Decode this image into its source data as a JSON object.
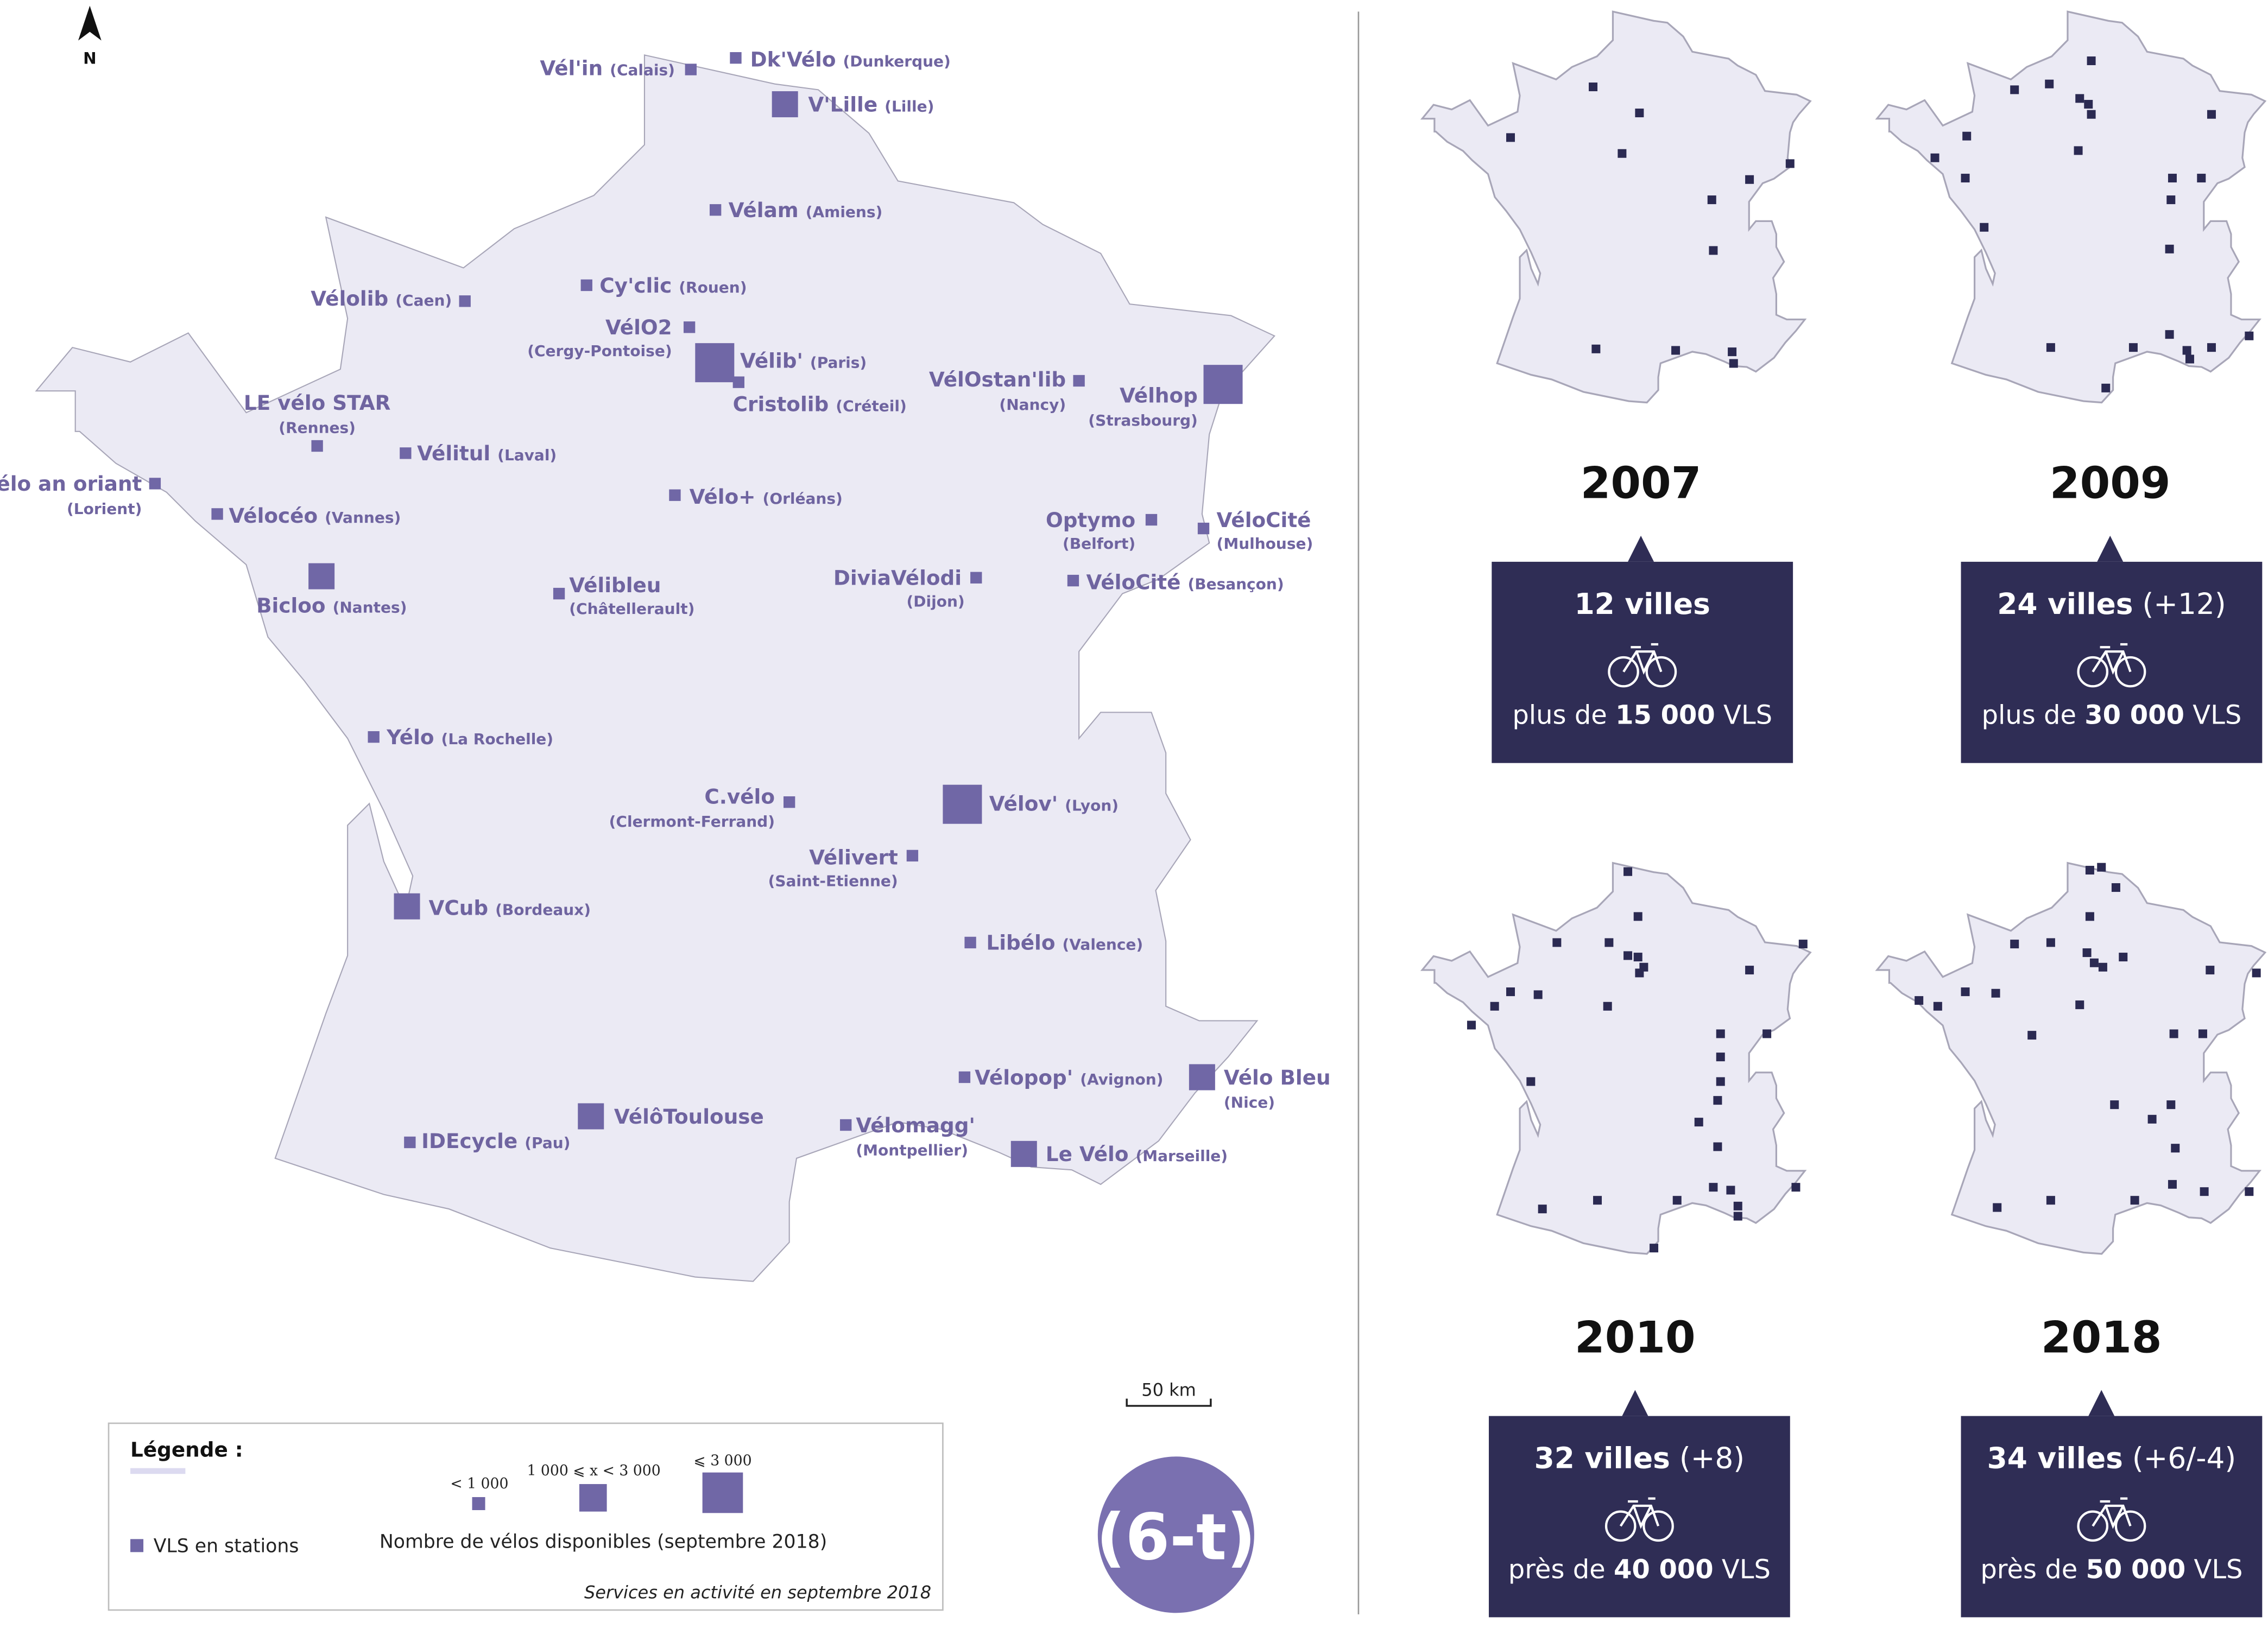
{
  "north_label": "N",
  "scale_label": "50 km",
  "legend": {
    "title": "Légende :",
    "vls_label": "VLS en stations",
    "size_small": "< 1 000",
    "size_medium": "1 000 ⩽ x < 3 000",
    "size_large": "⩽ 3 000",
    "size_title": "Nombre de vélos disponibles (septembre 2018)",
    "note": "Services en activité en septembre 2018"
  },
  "logo_text": "(6-t)",
  "colors": {
    "marker": "#7067a6",
    "land": "#ebeaf4",
    "box": "#2f2d55",
    "dark_marker": "#2b2a52"
  },
  "cities": [
    {
      "name": "Vél'in",
      "sub": "(Calais)"
    },
    {
      "name": "Dk'Vélo",
      "sub": "(Dunkerque)"
    },
    {
      "name": "V'Lille",
      "sub": "(Lille)"
    },
    {
      "name": "Vélam",
      "sub": "(Amiens)"
    },
    {
      "name": "Cy'clic",
      "sub": "(Rouen)"
    },
    {
      "name": "Vélolib",
      "sub": "(Caen)"
    },
    {
      "name": "VélO2",
      "sub": "(Cergy-Pontoise)"
    },
    {
      "name": "Vélib'",
      "sub": "(Paris)"
    },
    {
      "name": "Cristolib",
      "sub": "(Créteil)"
    },
    {
      "name": "VélOstan'lib",
      "sub": "(Nancy)"
    },
    {
      "name": "Vélhop",
      "sub": "(Strasbourg)"
    },
    {
      "name": "LE vélo STAR",
      "sub": "(Rennes)"
    },
    {
      "name": "Vélitul",
      "sub": "(Laval)"
    },
    {
      "name": "Vélo an oriant",
      "sub": "(Lorient)"
    },
    {
      "name": "Vélocéo",
      "sub": "(Vannes)"
    },
    {
      "name": "Vélo+",
      "sub": "(Orléans)"
    },
    {
      "name": "Optymo",
      "sub": "(Belfort)"
    },
    {
      "name": "VéloCité",
      "sub": "(Mulhouse)"
    },
    {
      "name": "Bicloo",
      "sub": "(Nantes)"
    },
    {
      "name": "Vélibleu",
      "sub": "(Châtellerault)"
    },
    {
      "name": "DiviaVélodi",
      "sub": "(Dijon)"
    },
    {
      "name": "VéloCité",
      "sub": "(Besançon)"
    },
    {
      "name": "Yélo",
      "sub": "(La Rochelle)"
    },
    {
      "name": "C.vélo",
      "sub": "(Clermont-Ferrand)"
    },
    {
      "name": "Vélov'",
      "sub": "(Lyon)"
    },
    {
      "name": "Vélivert",
      "sub": "(Saint-Etienne)"
    },
    {
      "name": "VCub",
      "sub": "(Bordeaux)"
    },
    {
      "name": "Libélo",
      "sub": "(Valence)"
    },
    {
      "name": "Vélopop'",
      "sub": "(Avignon)"
    },
    {
      "name": "Vélo Bleu",
      "sub": "(Nice)"
    },
    {
      "name": "VélôToulouse",
      "sub": ""
    },
    {
      "name": "Vélomagg'",
      "sub": "(Montpellier)"
    },
    {
      "name": "IDEcycle",
      "sub": "(Pau)"
    },
    {
      "name": "Le Vélo",
      "sub": "(Marseille)"
    }
  ],
  "timeline": [
    {
      "year": "2007",
      "villes": "12 villes",
      "delta": "",
      "prefix": "plus de ",
      "vls_num": "15 000",
      "vls_unit": " VLS"
    },
    {
      "year": "2009",
      "villes": "24 villes",
      "delta": " (+12)",
      "prefix": "plus de ",
      "vls_num": "30 000",
      "vls_unit": " VLS"
    },
    {
      "year": "2010",
      "villes": "32 villes",
      "delta": " (+8)",
      "prefix": "près de ",
      "vls_num": "40 000",
      "vls_unit": " VLS"
    },
    {
      "year": "2018",
      "villes": "34 villes",
      "delta": " (+6/-4)",
      "prefix": "près de ",
      "vls_num": "50 000",
      "vls_unit": " VLS"
    }
  ]
}
